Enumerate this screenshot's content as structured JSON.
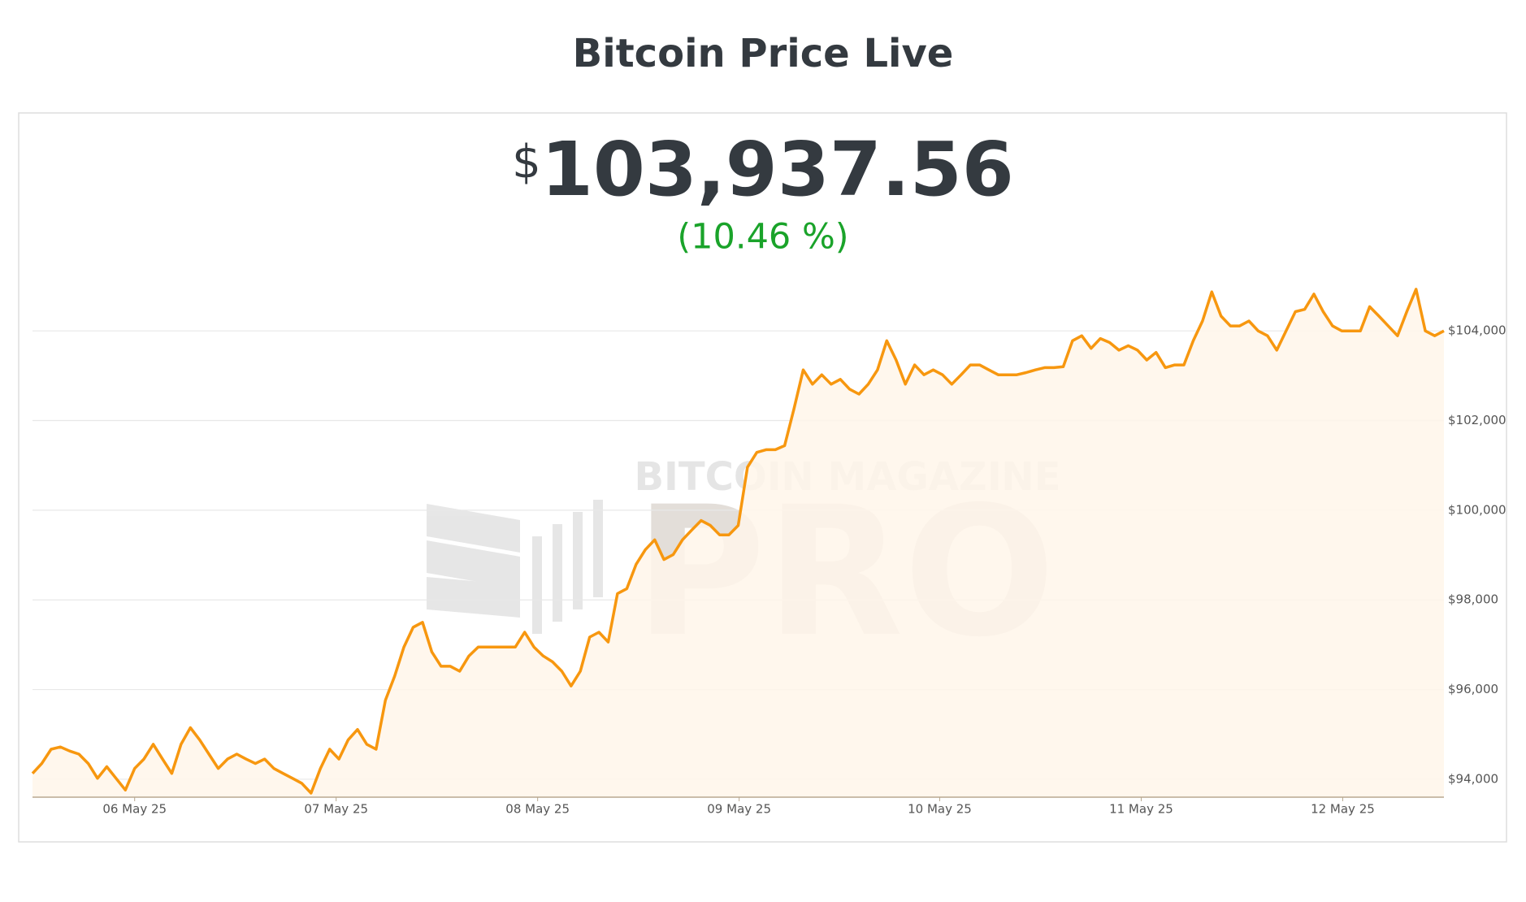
{
  "chart_data": {
    "type": "line",
    "title": "Bitcoin Price Live",
    "currency": "$",
    "price": "103,937.56",
    "change": "(10.46 %)",
    "watermark": [
      "BITCOIN MAGAZINE",
      "PRO"
    ],
    "color": "#f7970f",
    "fill": "#fff6ea",
    "grid": true,
    "ylim": [
      93600,
      105000
    ],
    "yticks": [
      {
        "value": 94000,
        "label": "$94,000"
      },
      {
        "value": 96000,
        "label": "$96,000"
      },
      {
        "value": 98000,
        "label": "$98,000"
      },
      {
        "value": 100000,
        "label": "$100,000"
      },
      {
        "value": 102000,
        "label": "$102,000"
      },
      {
        "value": 104000,
        "label": "$104,000"
      }
    ],
    "xlim": [
      0,
      152
    ],
    "xticks": [
      {
        "value": 11,
        "label": "06 May 25"
      },
      {
        "value": 32.7,
        "label": "07 May 25"
      },
      {
        "value": 54.4,
        "label": "08 May 25"
      },
      {
        "value": 76.1,
        "label": "09 May 25"
      },
      {
        "value": 97.7,
        "label": "10 May 25"
      },
      {
        "value": 119.4,
        "label": "11 May 25"
      },
      {
        "value": 141.1,
        "label": "12 May 25"
      }
    ],
    "values": [
      94130,
      94350,
      94670,
      94720,
      94630,
      94560,
      94350,
      94020,
      94280,
      94020,
      93760,
      94240,
      94450,
      94780,
      94450,
      94130,
      94780,
      95150,
      94880,
      94560,
      94240,
      94450,
      94560,
      94450,
      94350,
      94450,
      94240,
      94130,
      94020,
      93910,
      93690,
      94240,
      94670,
      94450,
      94880,
      95110,
      94780,
      94670,
      95760,
      96300,
      96950,
      97390,
      97500,
      96840,
      96520,
      96520,
      96410,
      96750,
      96950,
      96950,
      96950,
      96950,
      96950,
      97280,
      96950,
      96750,
      96620,
      96410,
      96080,
      96410,
      97170,
      97280,
      97060,
      98140,
      98250,
      98790,
      99120,
      99340,
      98900,
      99010,
      99340,
      99560,
      99770,
      99660,
      99450,
      99450,
      99660,
      100960,
      101290,
      101350,
      101350,
      101440,
      102260,
      103130,
      102810,
      103020,
      102810,
      102920,
      102700,
      102590,
      102810,
      103130,
      103780,
      103350,
      102810,
      103240,
      103020,
      103130,
      103020,
      102810,
      103020,
      103240,
      103240,
      103130,
      103020,
      103020,
      103020,
      103070,
      103130,
      103180,
      103180,
      103200,
      103780,
      103890,
      103610,
      103830,
      103740,
      103570,
      103670,
      103570,
      103350,
      103520,
      103180,
      103240,
      103240,
      103780,
      104220,
      104870,
      104330,
      104110,
      104110,
      104220,
      104000,
      103890,
      103570,
      104000,
      104430,
      104480,
      104820,
      104430,
      104110,
      104000,
      104000,
      104000,
      104540,
      104330,
      104110,
      103890,
      104430,
      104930,
      104000,
      103890,
      104000
    ]
  }
}
